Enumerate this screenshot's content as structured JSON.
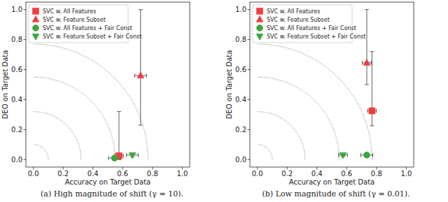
{
  "chart_data": [
    {
      "type": "scatter",
      "title": "(a) High magnitude of shift (γ = 10).",
      "x_label": "Accuracy on Target Data",
      "y_label": "DEO on Target Data",
      "xlim": [
        -0.05,
        1.05
      ],
      "ylim": [
        -0.05,
        1.05
      ],
      "xticks": [
        {
          "value": 0,
          "label": "0.0"
        },
        {
          "value": 0.2,
          "label": "0.2"
        },
        {
          "value": 0.4,
          "label": "0.4"
        },
        {
          "value": 0.6,
          "label": "0.6"
        },
        {
          "value": 0.8,
          "label": "0.8"
        },
        {
          "value": 1,
          "label": "1.0"
        }
      ],
      "yticks": [
        {
          "value": 0,
          "label": "0.0"
        },
        {
          "value": 0.2,
          "label": "0.2"
        },
        {
          "value": 0.4,
          "label": "0.4"
        },
        {
          "value": 0.6,
          "label": "0.6"
        },
        {
          "value": 0.8,
          "label": "0.8"
        },
        {
          "value": 1,
          "label": "1.0"
        }
      ],
      "reference_arcs": [
        0.1,
        0.32,
        0.55,
        0.77
      ],
      "legend": "upper left",
      "grid": false,
      "series": [
        {
          "name": "SVC w. All Features",
          "color": "#f03e3e",
          "marker": "square",
          "x": [
            0.575
          ],
          "values": [
            0.025
          ],
          "xerr": [
            0.03
          ],
          "yerr_minus": [
            0.025
          ],
          "yerr_plus": [
            0.295
          ]
        },
        {
          "name": "SVC w. Feature Subset",
          "color": "#f03e3e",
          "marker": "triangle-up",
          "x": [
            0.72
          ],
          "values": [
            0.56
          ],
          "xerr": [
            0.04
          ],
          "yerr_minus": [
            0.33
          ],
          "yerr_plus": [
            0.44
          ]
        },
        {
          "name": "SVC w. All Features + Fair Const",
          "color": "#3aa63a",
          "marker": "circle",
          "x": [
            0.545
          ],
          "values": [
            0.01
          ],
          "xerr": [
            0.04
          ],
          "yerr_minus": [
            0.01
          ],
          "yerr_plus": [
            0.01
          ]
        },
        {
          "name": "SVC w. Feature Subset + Fair Const",
          "color": "#3aa63a",
          "marker": "triangle-down",
          "x": [
            0.665
          ],
          "values": [
            0.03
          ],
          "xerr": [
            0.04
          ],
          "yerr_minus": [
            0.01
          ],
          "yerr_plus": [
            0.01
          ]
        }
      ]
    },
    {
      "type": "scatter",
      "title": "(b) Low magnitude of shift (γ = 0.01).",
      "x_label": "Accuracy on Target Data",
      "y_label": "DEO on Target Data",
      "xlim": [
        -0.05,
        1.05
      ],
      "ylim": [
        -0.05,
        1.05
      ],
      "xticks": [
        {
          "value": 0,
          "label": "0.0"
        },
        {
          "value": 0.2,
          "label": "0.2"
        },
        {
          "value": 0.4,
          "label": "0.4"
        },
        {
          "value": 0.6,
          "label": "0.6"
        },
        {
          "value": 0.8,
          "label": "0.8"
        },
        {
          "value": 1,
          "label": "1.0"
        }
      ],
      "yticks": [
        {
          "value": 0,
          "label": "0.0"
        },
        {
          "value": 0.2,
          "label": "0.2"
        },
        {
          "value": 0.4,
          "label": "0.4"
        },
        {
          "value": 0.6,
          "label": "0.6"
        },
        {
          "value": 0.8,
          "label": "0.8"
        },
        {
          "value": 1,
          "label": "1.0"
        }
      ],
      "reference_arcs": [
        0.1,
        0.32,
        0.55,
        0.77
      ],
      "legend": "upper left",
      "grid": false,
      "series": [
        {
          "name": "SVC w. All Features",
          "color": "#f03e3e",
          "marker": "square",
          "x": [
            0.77
          ],
          "values": [
            0.325
          ],
          "xerr": [
            0.03
          ],
          "yerr_minus": [
            0.1
          ],
          "yerr_plus": [
            0.395
          ]
        },
        {
          "name": "SVC w. Feature Subset",
          "color": "#f03e3e",
          "marker": "triangle-up",
          "x": [
            0.735
          ],
          "values": [
            0.645
          ],
          "xerr": [
            0.03
          ],
          "yerr_minus": [
            0.145
          ],
          "yerr_plus": [
            0.355
          ]
        },
        {
          "name": "SVC w. All Features + Fair Const",
          "color": "#3aa63a",
          "marker": "circle",
          "x": [
            0.735
          ],
          "values": [
            0.03
          ],
          "xerr": [
            0.04
          ],
          "yerr_minus": [
            0.01
          ],
          "yerr_plus": [
            0.01
          ]
        },
        {
          "name": "SVC w. Feature Subset + Fair Const",
          "color": "#3aa63a",
          "marker": "triangle-down",
          "x": [
            0.575
          ],
          "values": [
            0.03
          ],
          "xerr": [
            0.03
          ],
          "yerr_minus": [
            0.01
          ],
          "yerr_plus": [
            0.01
          ]
        }
      ]
    }
  ]
}
